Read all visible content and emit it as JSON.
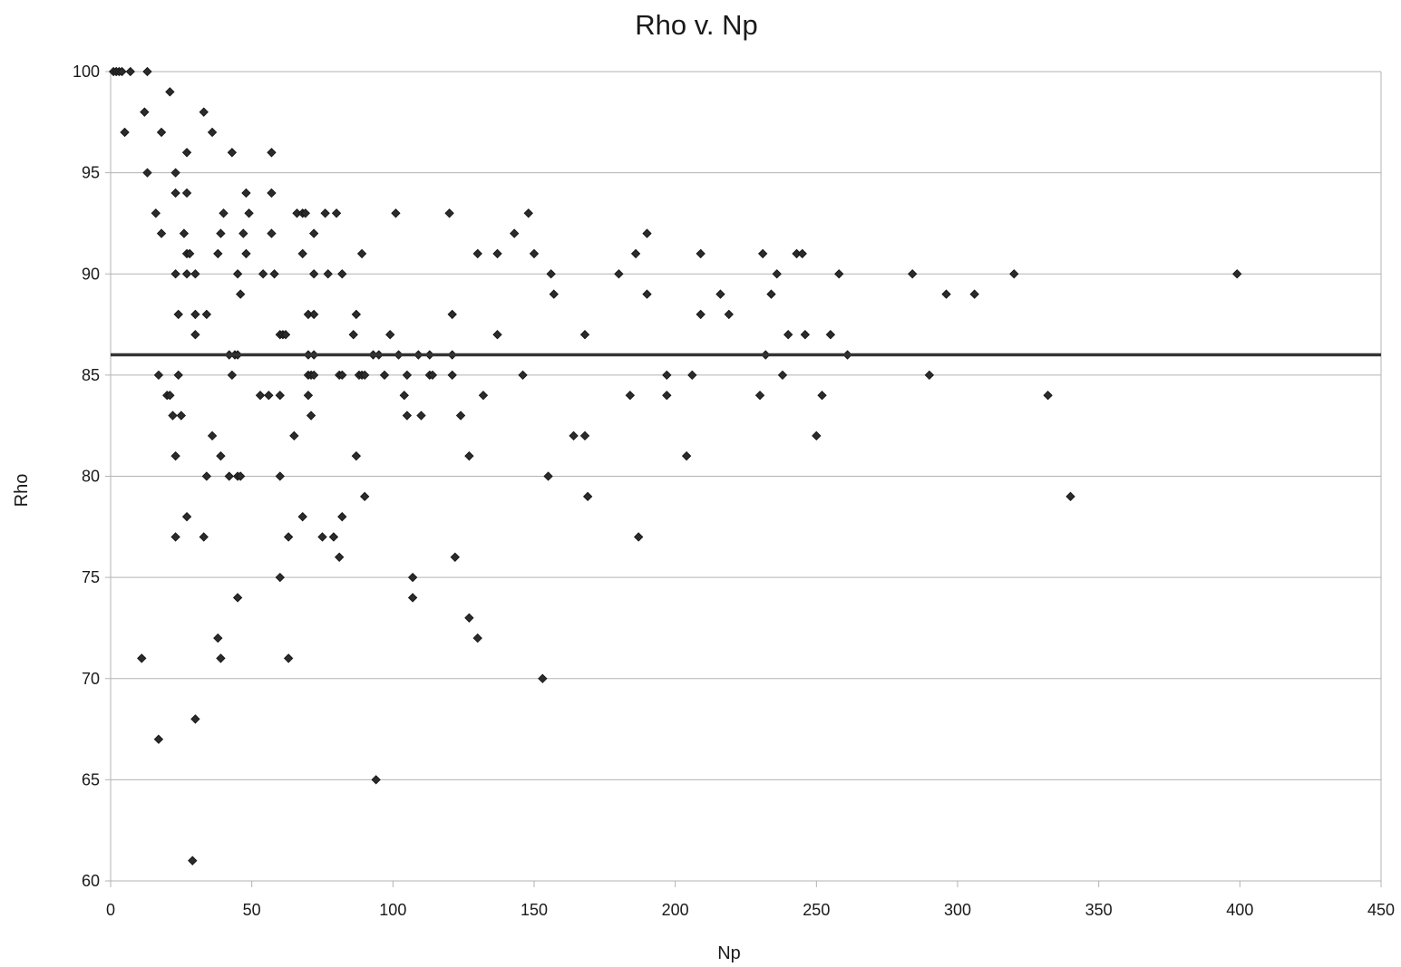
{
  "chart_data": {
    "type": "scatter",
    "title": "Rho v. Np",
    "xlabel": "Np",
    "ylabel": "Rho",
    "xlim": [
      0,
      450
    ],
    "ylim": [
      60,
      100
    ],
    "xticks": [
      0,
      50,
      100,
      150,
      200,
      250,
      300,
      350,
      400,
      450
    ],
    "yticks": [
      60,
      65,
      70,
      75,
      80,
      85,
      90,
      95,
      100
    ],
    "grid": "horizontal",
    "legend": "none",
    "reference_line": {
      "y": 86,
      "orientation": "horizontal"
    },
    "colors": {
      "points": "#2b2b2b",
      "reference_line": "#333333",
      "grid": "#b3b3b3"
    },
    "series": [
      {
        "points": [
          [
            1,
            100
          ],
          [
            2,
            100
          ],
          [
            3,
            100
          ],
          [
            4,
            100
          ],
          [
            7,
            100
          ],
          [
            13,
            100
          ],
          [
            5,
            97
          ],
          [
            12,
            98
          ],
          [
            13,
            95
          ],
          [
            11,
            71
          ],
          [
            16,
            93
          ],
          [
            17,
            85
          ],
          [
            17,
            67
          ],
          [
            18,
            97
          ],
          [
            18,
            92
          ],
          [
            20,
            84
          ],
          [
            21,
            84
          ],
          [
            21,
            99
          ],
          [
            22,
            83
          ],
          [
            23,
            95
          ],
          [
            23,
            94
          ],
          [
            23,
            90
          ],
          [
            23,
            81
          ],
          [
            23,
            77
          ],
          [
            24,
            88
          ],
          [
            24,
            85
          ],
          [
            25,
            83
          ],
          [
            26,
            92
          ],
          [
            27,
            96
          ],
          [
            27,
            94
          ],
          [
            27,
            91
          ],
          [
            27,
            90
          ],
          [
            27,
            78
          ],
          [
            28,
            91
          ],
          [
            29,
            61
          ],
          [
            30,
            90
          ],
          [
            30,
            88
          ],
          [
            30,
            87
          ],
          [
            30,
            68
          ],
          [
            33,
            98
          ],
          [
            33,
            77
          ],
          [
            34,
            88
          ],
          [
            34,
            80
          ],
          [
            36,
            97
          ],
          [
            36,
            82
          ],
          [
            38,
            91
          ],
          [
            38,
            72
          ],
          [
            39,
            92
          ],
          [
            39,
            81
          ],
          [
            39,
            71
          ],
          [
            40,
            93
          ],
          [
            42,
            86
          ],
          [
            42,
            80
          ],
          [
            43,
            96
          ],
          [
            43,
            85
          ],
          [
            44,
            86
          ],
          [
            45,
            90
          ],
          [
            45,
            86
          ],
          [
            45,
            80
          ],
          [
            45,
            74
          ],
          [
            46,
            89
          ],
          [
            46,
            80
          ],
          [
            47,
            92
          ],
          [
            48,
            94
          ],
          [
            48,
            91
          ],
          [
            49,
            93
          ],
          [
            53,
            84
          ],
          [
            54,
            90
          ],
          [
            56,
            84
          ],
          [
            57,
            96
          ],
          [
            57,
            94
          ],
          [
            57,
            92
          ],
          [
            58,
            90
          ],
          [
            60,
            87
          ],
          [
            60,
            84
          ],
          [
            60,
            80
          ],
          [
            60,
            75
          ],
          [
            61,
            87
          ],
          [
            62,
            87
          ],
          [
            63,
            77
          ],
          [
            63,
            71
          ],
          [
            65,
            82
          ],
          [
            66,
            93
          ],
          [
            68,
            93
          ],
          [
            68,
            91
          ],
          [
            68,
            78
          ],
          [
            69,
            93
          ],
          [
            70,
            88
          ],
          [
            70,
            86
          ],
          [
            70,
            85
          ],
          [
            70,
            84
          ],
          [
            71,
            83
          ],
          [
            71,
            85
          ],
          [
            72,
            92
          ],
          [
            72,
            90
          ],
          [
            72,
            88
          ],
          [
            72,
            86
          ],
          [
            72,
            85
          ],
          [
            75,
            77
          ],
          [
            76,
            93
          ],
          [
            77,
            90
          ],
          [
            79,
            77
          ],
          [
            80,
            93
          ],
          [
            81,
            85
          ],
          [
            81,
            76
          ],
          [
            82,
            90
          ],
          [
            82,
            85
          ],
          [
            82,
            78
          ],
          [
            86,
            87
          ],
          [
            87,
            88
          ],
          [
            87,
            81
          ],
          [
            88,
            85
          ],
          [
            89,
            85
          ],
          [
            89,
            91
          ],
          [
            90,
            85
          ],
          [
            90,
            79
          ],
          [
            93,
            86
          ],
          [
            94,
            65
          ],
          [
            95,
            86
          ],
          [
            97,
            85
          ],
          [
            99,
            87
          ],
          [
            101,
            93
          ],
          [
            102,
            86
          ],
          [
            104,
            84
          ],
          [
            105,
            85
          ],
          [
            105,
            83
          ],
          [
            107,
            75
          ],
          [
            107,
            74
          ],
          [
            109,
            86
          ],
          [
            110,
            83
          ],
          [
            113,
            86
          ],
          [
            113,
            85
          ],
          [
            114,
            85
          ],
          [
            120,
            93
          ],
          [
            121,
            88
          ],
          [
            121,
            86
          ],
          [
            121,
            85
          ],
          [
            122,
            76
          ],
          [
            124,
            83
          ],
          [
            127,
            81
          ],
          [
            127,
            73
          ],
          [
            130,
            91
          ],
          [
            130,
            72
          ],
          [
            132,
            84
          ],
          [
            137,
            91
          ],
          [
            137,
            87
          ],
          [
            143,
            92
          ],
          [
            146,
            85
          ],
          [
            148,
            93
          ],
          [
            150,
            91
          ],
          [
            153,
            70
          ],
          [
            155,
            80
          ],
          [
            156,
            90
          ],
          [
            157,
            89
          ],
          [
            164,
            82
          ],
          [
            168,
            87
          ],
          [
            168,
            82
          ],
          [
            169,
            79
          ],
          [
            180,
            90
          ],
          [
            184,
            84
          ],
          [
            186,
            91
          ],
          [
            187,
            77
          ],
          [
            190,
            92
          ],
          [
            190,
            89
          ],
          [
            197,
            85
          ],
          [
            197,
            84
          ],
          [
            204,
            81
          ],
          [
            206,
            85
          ],
          [
            209,
            91
          ],
          [
            209,
            88
          ],
          [
            216,
            89
          ],
          [
            219,
            88
          ],
          [
            230,
            84
          ],
          [
            231,
            91
          ],
          [
            232,
            86
          ],
          [
            234,
            89
          ],
          [
            236,
            90
          ],
          [
            238,
            85
          ],
          [
            240,
            87
          ],
          [
            243,
            91
          ],
          [
            245,
            91
          ],
          [
            246,
            87
          ],
          [
            250,
            82
          ],
          [
            252,
            84
          ],
          [
            255,
            87
          ],
          [
            258,
            90
          ],
          [
            261,
            86
          ],
          [
            284,
            90
          ],
          [
            290,
            85
          ],
          [
            296,
            89
          ],
          [
            306,
            89
          ],
          [
            320,
            90
          ],
          [
            332,
            84
          ],
          [
            340,
            79
          ],
          [
            399,
            90
          ]
        ]
      }
    ]
  }
}
